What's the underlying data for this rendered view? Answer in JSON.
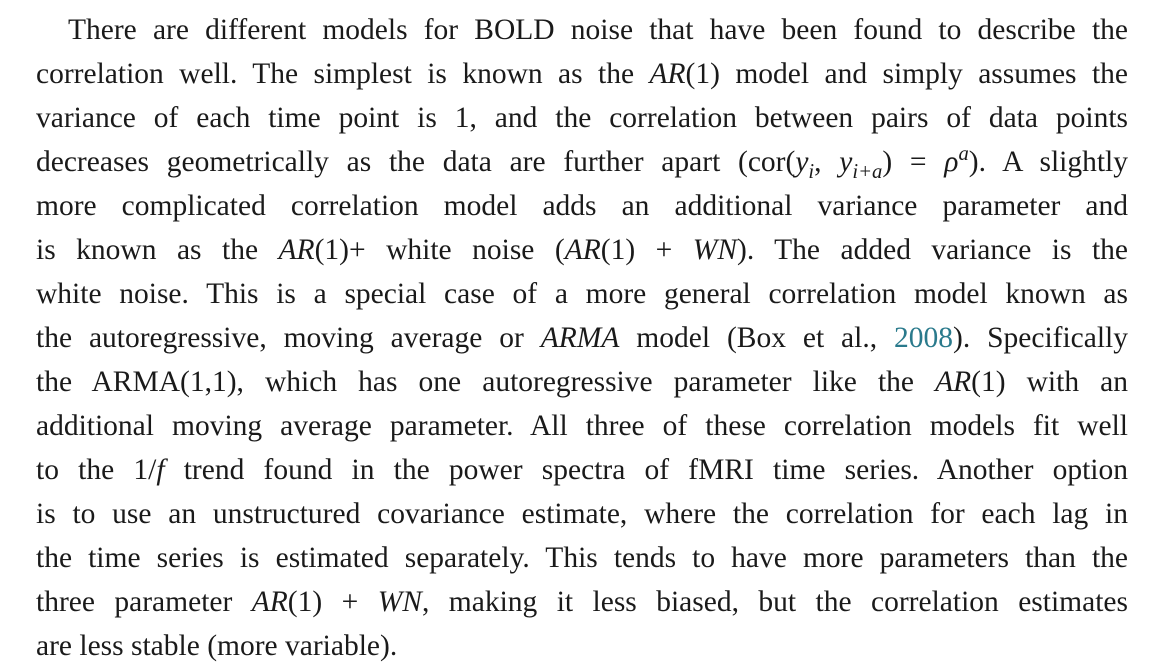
{
  "paragraph": {
    "lines": [
      {
        "indent": true,
        "justify": true,
        "segments": [
          {
            "t": "There are different models for BOLD noise that have been found to describe the"
          }
        ]
      },
      {
        "justify": true,
        "segments": [
          {
            "t": "correlation well. The simplest is known as the "
          },
          {
            "t": "AR",
            "style": "italic"
          },
          {
            "t": "(1) model and simply assumes the"
          }
        ]
      },
      {
        "justify": true,
        "segments": [
          {
            "t": "variance of each time point is 1, and the correlation between pairs of data points"
          }
        ]
      },
      {
        "justify": true,
        "segments": [
          {
            "t": "decreases geometrically as the data are further apart (cor("
          },
          {
            "t": "y",
            "style": "italic"
          },
          {
            "t": "i",
            "style": "sub-italic"
          },
          {
            "t": ", "
          },
          {
            "t": "y",
            "style": "italic"
          },
          {
            "t": "i+a",
            "style": "sub-italic"
          },
          {
            "t": ") = "
          },
          {
            "t": "ρ",
            "style": "italic"
          },
          {
            "t": "a",
            "style": "sup-italic"
          },
          {
            "t": "). A slightly"
          }
        ]
      },
      {
        "justify": true,
        "segments": [
          {
            "t": "more complicated correlation model adds an additional variance parameter and"
          }
        ]
      },
      {
        "justify": true,
        "segments": [
          {
            "t": "is known as the "
          },
          {
            "t": "AR",
            "style": "italic"
          },
          {
            "t": "(1)+ white noise ("
          },
          {
            "t": "AR",
            "style": "italic"
          },
          {
            "t": "(1) + "
          },
          {
            "t": "WN",
            "style": "italic"
          },
          {
            "t": "). The added variance is the"
          }
        ]
      },
      {
        "justify": true,
        "segments": [
          {
            "t": "white noise. This is a special case of a more general correlation model known as"
          }
        ]
      },
      {
        "justify": true,
        "segments": [
          {
            "t": "the autoregressive, moving average or "
          },
          {
            "t": "ARMA",
            "style": "italic"
          },
          {
            "t": " model (Box et al., "
          },
          {
            "t": "2008",
            "style": "link"
          },
          {
            "t": "). Specifically"
          }
        ]
      },
      {
        "justify": true,
        "segments": [
          {
            "t": "the ARMA(1,1), which has one autoregressive parameter like the "
          },
          {
            "t": "AR",
            "style": "italic"
          },
          {
            "t": "(1) with an"
          }
        ]
      },
      {
        "justify": true,
        "segments": [
          {
            "t": "additional moving average parameter. All three of these correlation models fit well"
          }
        ]
      },
      {
        "justify": true,
        "segments": [
          {
            "t": "to the 1/"
          },
          {
            "t": "f",
            "style": "italic"
          },
          {
            "t": " trend found in the power spectra of fMRI time series. Another option"
          }
        ]
      },
      {
        "justify": true,
        "segments": [
          {
            "t": "is to use an unstructured covariance estimate, where the correlation for each lag in"
          }
        ]
      },
      {
        "justify": true,
        "segments": [
          {
            "t": "the time series is estimated separately. This tends to have more parameters than the"
          }
        ]
      },
      {
        "justify": true,
        "segments": [
          {
            "t": "three parameter "
          },
          {
            "t": "AR",
            "style": "italic"
          },
          {
            "t": "(1) + "
          },
          {
            "t": "WN",
            "style": "italic"
          },
          {
            "t": ", making it less biased, but the correlation estimates"
          }
        ]
      },
      {
        "justify": false,
        "segments": [
          {
            "t": "are less stable (more variable)."
          }
        ]
      }
    ]
  }
}
